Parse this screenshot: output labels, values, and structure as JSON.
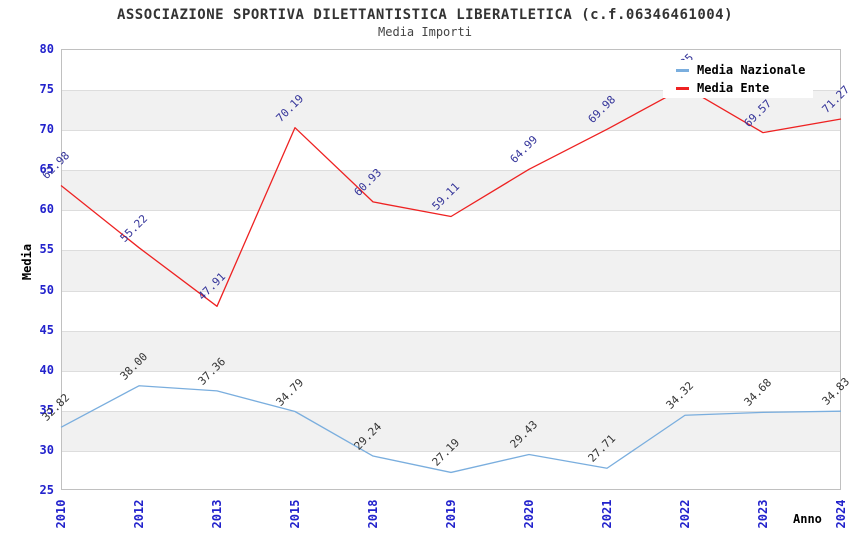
{
  "title": "ASSOCIAZIONE SPORTIVA DILETTANTISTICA LIBERATLETICA (c.f.06346461004)",
  "subtitle": "Media Importi",
  "axes": {
    "y_label": "Media",
    "x_label": "Anno",
    "y_ticks": [
      80,
      75,
      70,
      65,
      60,
      55,
      50,
      45,
      40,
      35,
      30,
      25
    ],
    "x_categories": [
      "2010",
      "2012",
      "2013",
      "2015",
      "2018",
      "2019",
      "2020",
      "2021",
      "2022",
      "2023",
      "2024"
    ]
  },
  "legend": {
    "position": "top-right",
    "items": [
      {
        "label": "Media Nazionale",
        "color": "#7aaede"
      },
      {
        "label": "Media Ente",
        "color": "#ee2222"
      }
    ]
  },
  "colors": {
    "tick_label": "#2222cc",
    "gridline": "#dddddd",
    "band_fill": "#f1f1f1",
    "plot_border": "#c0c0c0",
    "title_text": "#333333",
    "nazionale_line": "#7aaede",
    "ente_line": "#ee2222",
    "nazionale_point_label": "#333333",
    "ente_point_label": "#333399"
  },
  "chart_data": {
    "type": "line",
    "title": "Media Importi",
    "xlabel": "Anno",
    "ylabel": "Media",
    "ylim": [
      25,
      80
    ],
    "ytick_step": 5,
    "grid": "horizontal",
    "legend_position": "top-right",
    "categories": [
      "2010",
      "2012",
      "2013",
      "2015",
      "2018",
      "2019",
      "2020",
      "2021",
      "2022",
      "2023",
      "2024"
    ],
    "series": [
      {
        "name": "Media Nazionale",
        "color": "#7aaede",
        "label_color": "#333333",
        "values": [
          32.82,
          38.0,
          37.36,
          34.79,
          29.24,
          27.19,
          29.43,
          27.71,
          34.32,
          34.68,
          34.83
        ]
      },
      {
        "name": "Media Ente",
        "color": "#ee2222",
        "label_color": "#333399",
        "values": [
          62.98,
          55.22,
          47.91,
          70.19,
          60.93,
          59.11,
          64.99,
          69.98,
          75.25,
          69.57,
          71.27
        ]
      }
    ],
    "notes": {
      "ente_2022_label": "mostly hidden behind legend; visible fragment reads '25', value estimated 75.25"
    }
  }
}
